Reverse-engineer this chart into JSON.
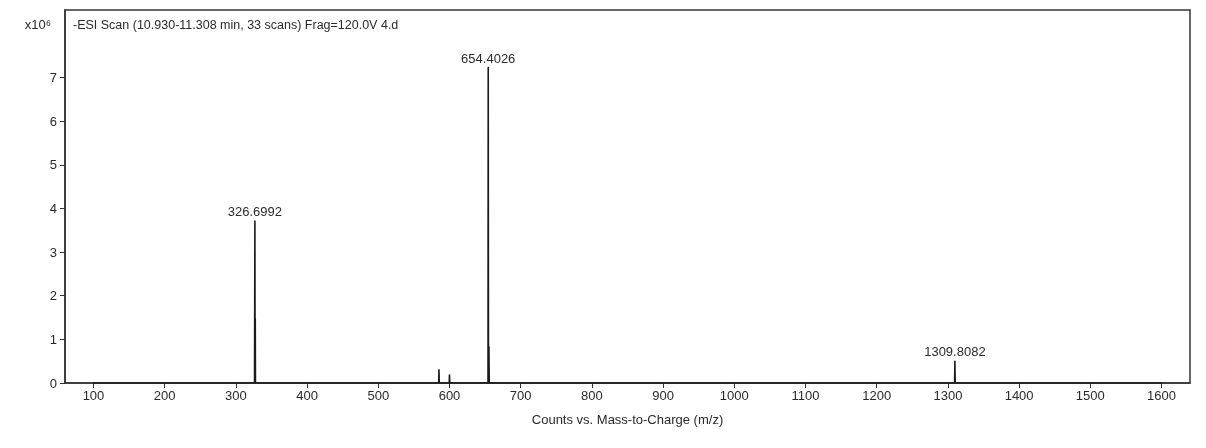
{
  "chart_data": {
    "type": "line",
    "title": "-ESI Scan (10.930-11.308 min, 33 scans) Frag=120.0V 4.d",
    "xlabel": "Counts vs. Mass-to-Charge (m/z)",
    "ylabel": "x10⁶",
    "x": [
      100,
      326.2,
      326.6992,
      326.95,
      327.2,
      327.5,
      584.8,
      585.2,
      585.6,
      599.6,
      600,
      600.4,
      654.1,
      654.4026,
      654.75,
      655.4,
      655.8,
      1309.4,
      1309.8082,
      1310.2,
      1600
    ],
    "series": [
      {
        "color": "#1a1a1a",
        "values": [
          0,
          0,
          3.71,
          0,
          1.47,
          0,
          0,
          0.3,
          0,
          0,
          0.18,
          0,
          0,
          7.23,
          0,
          0.83,
          0,
          0,
          0.5,
          0,
          0
        ]
      }
    ],
    "xlim": [
      60,
      1640
    ],
    "ylim": [
      0,
      8.55
    ],
    "xticks": [
      100,
      200,
      300,
      400,
      500,
      600,
      700,
      800,
      900,
      1000,
      1100,
      1200,
      1300,
      1400,
      1500,
      1600
    ],
    "yticks": [
      0,
      1,
      2,
      3,
      4,
      5,
      6,
      7
    ],
    "marker": "none",
    "line_style": "solid",
    "annotations": [
      {
        "text": "326.6992",
        "x": 326.6992,
        "y": 3.71
      },
      {
        "text": "654.4026",
        "x": 654.4026,
        "y": 7.23
      },
      {
        "text": "1309.8082",
        "x": 1309.8082,
        "y": 0.5
      }
    ]
  }
}
